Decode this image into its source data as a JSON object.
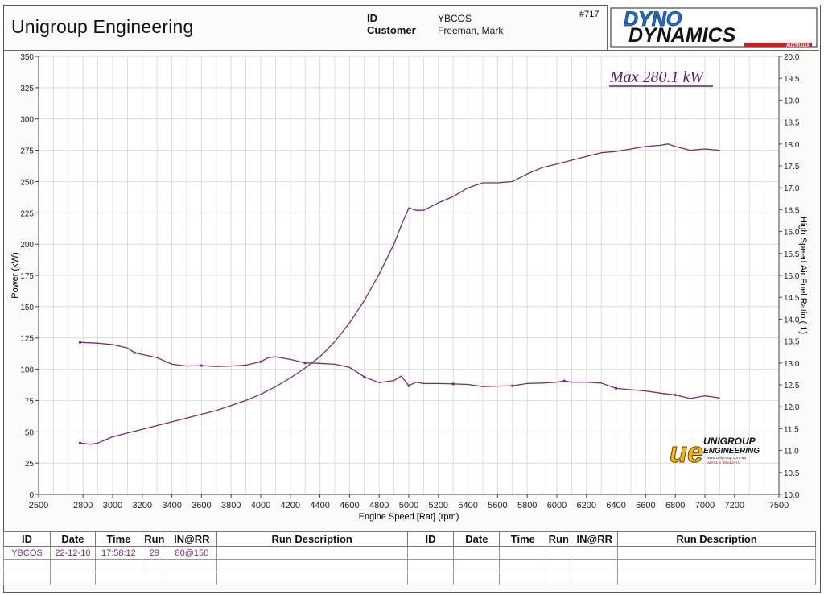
{
  "header": {
    "company": "Unigroup Engineering",
    "id_label": "ID",
    "id_value": "YBCOS",
    "customer_label": "Customer",
    "customer_value": "Freeman, Mark",
    "sheet_number": "#717",
    "logo_top": "DYNO",
    "logo_bottom": "DYNAMICS",
    "logo_sub": "AUSTRALIA"
  },
  "colors": {
    "trace": "#7a2a74",
    "annotation": "#5a1f5e",
    "grid": "#cfcfcf",
    "logo_blue": "#1f6fd1",
    "logo_red": "#cc1f1f"
  },
  "watermark": {
    "mark": "ue",
    "line1": "UNIGROUP",
    "line2": "ENGINEERING",
    "line3": "www.unigroup.com.au",
    "line4": "02+61 2 96312470"
  },
  "chart_data": {
    "type": "line",
    "annotation": "Max 280.1 kW",
    "xlabel": "Engine Speed [Rat] (rpm)",
    "ylabel": "Power (kW)",
    "y2label": "High Speed Air:Fuel Ratio (:1)",
    "xlim": [
      2500,
      7500
    ],
    "ylim": [
      0,
      350
    ],
    "y2lim": [
      10.0,
      20.0
    ],
    "x_ticks": [
      2500,
      2800,
      3000,
      3200,
      3400,
      3600,
      3800,
      4000,
      4200,
      4400,
      4600,
      4800,
      5000,
      5200,
      5400,
      5600,
      5800,
      6000,
      6200,
      6400,
      6600,
      6800,
      7000,
      7200,
      7500
    ],
    "y_ticks": [
      0,
      25,
      50,
      75,
      100,
      125,
      150,
      175,
      200,
      225,
      250,
      275,
      300,
      325,
      350
    ],
    "y2_ticks": [
      "10.0",
      "10.5",
      "11.0",
      "11.5",
      "12.0",
      "12.5",
      "13.0",
      "13.5",
      "14.0",
      "14.5",
      "15.0",
      "15.5",
      "16.0",
      "16.5",
      "17.0",
      "17.5",
      "18.0",
      "18.5",
      "19.0",
      "19.5",
      "20.0"
    ],
    "grid": true,
    "series": [
      {
        "axis": "left",
        "x": [
          2780,
          2850,
          2900,
          3000,
          3100,
          3200,
          3300,
          3400,
          3500,
          3600,
          3700,
          3800,
          3900,
          4000,
          4100,
          4200,
          4300,
          4400,
          4500,
          4600,
          4700,
          4800,
          4900,
          4950,
          5000,
          5050,
          5100,
          5200,
          5300,
          5400,
          5500,
          5600,
          5700,
          5800,
          5900,
          6000,
          6100,
          6200,
          6300,
          6400,
          6500,
          6600,
          6700,
          6750,
          6800,
          6900,
          7000,
          7100
        ],
        "y": [
          41,
          40,
          41,
          46,
          49,
          52,
          55,
          58,
          61,
          64,
          67,
          71,
          75,
          80,
          86,
          93,
          101,
          110,
          122,
          137,
          155,
          176,
          200,
          215,
          229,
          227,
          227,
          233,
          238,
          245,
          249,
          249,
          250,
          256,
          261,
          264,
          267,
          270,
          273,
          274,
          276,
          278,
          279,
          280,
          278,
          275,
          276,
          275
        ]
      },
      {
        "axis": "right",
        "x": [
          2780,
          2900,
          3000,
          3100,
          3150,
          3300,
          3400,
          3500,
          3600,
          3700,
          3800,
          3900,
          4000,
          4050,
          4100,
          4200,
          4300,
          4400,
          4500,
          4600,
          4700,
          4800,
          4900,
          4950,
          5000,
          5050,
          5100,
          5200,
          5300,
          5400,
          5500,
          5600,
          5700,
          5800,
          5900,
          6000,
          6050,
          6100,
          6200,
          6300,
          6400,
          6500,
          6600,
          6700,
          6800,
          6900,
          7000,
          7100
        ],
        "y": [
          13.47,
          13.45,
          13.42,
          13.34,
          13.23,
          13.12,
          12.97,
          12.93,
          12.94,
          12.92,
          12.93,
          12.95,
          13.03,
          13.12,
          13.14,
          13.08,
          13.0,
          12.99,
          12.97,
          12.9,
          12.68,
          12.55,
          12.6,
          12.7,
          12.48,
          12.56,
          12.53,
          12.53,
          12.52,
          12.51,
          12.46,
          12.47,
          12.48,
          12.53,
          12.54,
          12.56,
          12.59,
          12.56,
          12.56,
          12.54,
          12.42,
          12.39,
          12.36,
          12.31,
          12.27,
          12.19,
          12.25,
          12.2
        ]
      }
    ]
  },
  "run_table": {
    "headers": [
      "ID",
      "Date",
      "Time",
      "Run",
      "IN@RR",
      "Run Description",
      "ID",
      "Date",
      "Time",
      "Run",
      "IN@RR",
      "Run Description"
    ],
    "rows": [
      [
        "YBCOS",
        "22-12-10",
        "17:58:12",
        "29",
        "80@150",
        "",
        "",
        "",
        "",
        "",
        "",
        ""
      ],
      [
        "",
        "",
        "",
        "",
        "",
        "",
        "",
        "",
        "",
        "",
        "",
        ""
      ],
      [
        "",
        "",
        "",
        "",
        "",
        "",
        "",
        "",
        "",
        "",
        "",
        ""
      ]
    ]
  }
}
